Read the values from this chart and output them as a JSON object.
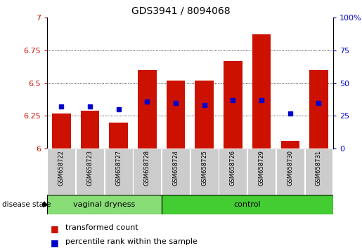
{
  "title": "GDS3941 / 8094068",
  "samples": [
    "GSM658722",
    "GSM658723",
    "GSM658727",
    "GSM658728",
    "GSM658724",
    "GSM658725",
    "GSM658726",
    "GSM658729",
    "GSM658730",
    "GSM658731"
  ],
  "red_bar_tops": [
    6.27,
    6.29,
    6.2,
    6.6,
    6.52,
    6.52,
    6.67,
    6.87,
    6.06,
    6.6
  ],
  "blue_values": [
    6.32,
    6.32,
    6.3,
    6.36,
    6.35,
    6.33,
    6.37,
    6.37,
    6.27,
    6.35
  ],
  "group1_label": "vaginal dryness",
  "group2_label": "control",
  "group1_count": 4,
  "group2_count": 6,
  "ylim_left": [
    6.0,
    7.0
  ],
  "ylim_right": [
    0,
    100
  ],
  "yticks_left": [
    6.0,
    6.25,
    6.5,
    6.75,
    7.0
  ],
  "yticks_right": [
    0,
    25,
    50,
    75,
    100
  ],
  "red_color": "#cc1100",
  "blue_color": "#0000cc",
  "bar_base": 6.0,
  "bar_width": 0.65,
  "group1_bg": "#88dd77",
  "group2_bg": "#44cc33",
  "sample_bg": "#cccccc",
  "grid_color": "black",
  "legend_red_label": "transformed count",
  "legend_blue_label": "percentile rank within the sample",
  "figsize": [
    5.15,
    3.54
  ],
  "dpi": 100
}
